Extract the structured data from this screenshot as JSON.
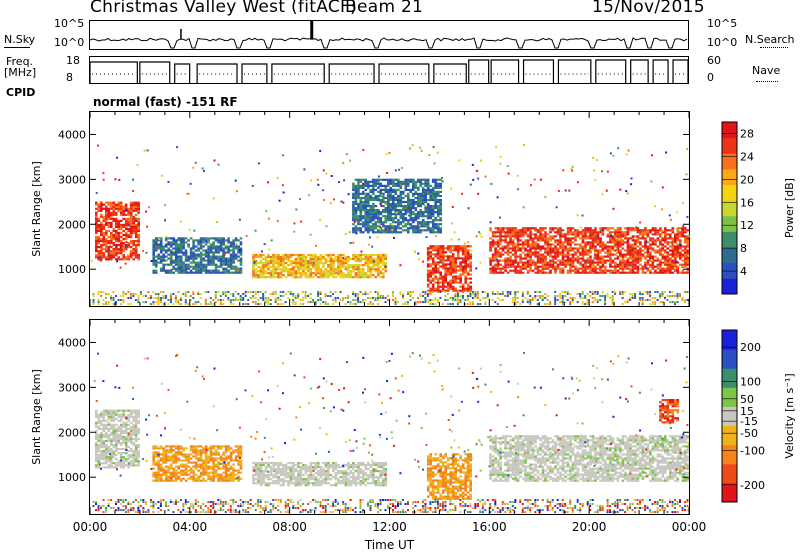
{
  "header": {
    "station": "Christmas Valley West (fitACF)",
    "beam": "Beam 21",
    "date": "15/Nov/2015",
    "mode": "normal (fast) -151 RF"
  },
  "top_panels": {
    "nsky_label": "N.Sky",
    "nsky_ticks": [
      "10^5",
      "10^0"
    ],
    "nsearch_label": "N.Search",
    "nsearch_ticks": [
      "10^5",
      "10^0"
    ],
    "freq_label_1": "Freq.",
    "freq_label_2": "[MHz]",
    "freq_ticks": [
      "18",
      "8"
    ],
    "nave_label": "Nave",
    "nave_ticks": [
      "60",
      "0"
    ],
    "cpid_label": "CPID"
  },
  "chart_data": [
    {
      "type": "heatmap",
      "parameter": "Power",
      "ylabel": "Slant Range [km]",
      "yticks": [
        1000,
        2000,
        3000,
        4000
      ],
      "ylim": [
        180,
        4500
      ],
      "xlim_hours": [
        0,
        24
      ],
      "colorbar_label": "Power [dB]",
      "colorbar_ticks": [
        28,
        24,
        20,
        16,
        12,
        8,
        4
      ],
      "colorbar_range": [
        0,
        30
      ],
      "colors": [
        "#1a20d8",
        "#2b4fc0",
        "#2f6a8f",
        "#3b8f6a",
        "#7cc246",
        "#c8d62e",
        "#f4d40e",
        "#f9a81a",
        "#f6701e",
        "#ee3216",
        "#e0141a"
      ],
      "features": [
        {
          "from_h": 0.2,
          "to_h": 2.0,
          "range_km": [
            1200,
            2500
          ],
          "level": "high"
        },
        {
          "from_h": 2.5,
          "to_h": 6.0,
          "range_km": [
            900,
            1700
          ],
          "level": "low"
        },
        {
          "from_h": 6.5,
          "to_h": 11.8,
          "range_km": [
            800,
            1300
          ],
          "level": "mid"
        },
        {
          "from_h": 13.5,
          "to_h": 15.2,
          "range_km": [
            500,
            1500
          ],
          "level": "high"
        },
        {
          "from_h": 16.0,
          "to_h": 24.0,
          "range_km": [
            900,
            1900
          ],
          "level": "high"
        },
        {
          "from_h": 10.5,
          "to_h": 14.0,
          "range_km": [
            1800,
            3000
          ],
          "level": "low"
        }
      ]
    },
    {
      "type": "heatmap",
      "parameter": "Velocity",
      "ylabel": "Slant Range [km]",
      "yticks": [
        1000,
        2000,
        3000,
        4000
      ],
      "ylim": [
        180,
        4500
      ],
      "xlabel": "Time UT",
      "xticks": [
        "00:00",
        "04:00",
        "08:00",
        "12:00",
        "16:00",
        "20:00",
        "00:00"
      ],
      "xlim_hours": [
        0,
        24
      ],
      "colorbar_label": "Velocity [m s⁻¹]",
      "colorbar_ticks": [
        200,
        100,
        50,
        15,
        -15,
        -50,
        -100,
        -200
      ],
      "colorbar_range": [
        -250,
        250
      ],
      "colors": [
        "#e0141a",
        "#f04a18",
        "#f6841c",
        "#f0b21a",
        "#c8c8c0",
        "#7ec44a",
        "#3b8f6a",
        "#2b4fc0",
        "#1a20d8"
      ],
      "features": [
        {
          "from_h": 0.2,
          "to_h": 2.0,
          "range_km": [
            1200,
            2500
          ],
          "level": "ground"
        },
        {
          "from_h": 2.5,
          "to_h": 6.0,
          "range_km": [
            900,
            1700
          ],
          "level": "neg"
        },
        {
          "from_h": 6.5,
          "to_h": 11.8,
          "range_km": [
            800,
            1300
          ],
          "level": "ground"
        },
        {
          "from_h": 13.5,
          "to_h": 15.2,
          "range_km": [
            500,
            1500
          ],
          "level": "neg"
        },
        {
          "from_h": 16.0,
          "to_h": 24.0,
          "range_km": [
            900,
            1900
          ],
          "level": "ground"
        },
        {
          "from_h": 22.8,
          "to_h": 23.6,
          "range_km": [
            2200,
            2700
          ],
          "level": "negstrong"
        }
      ]
    }
  ]
}
